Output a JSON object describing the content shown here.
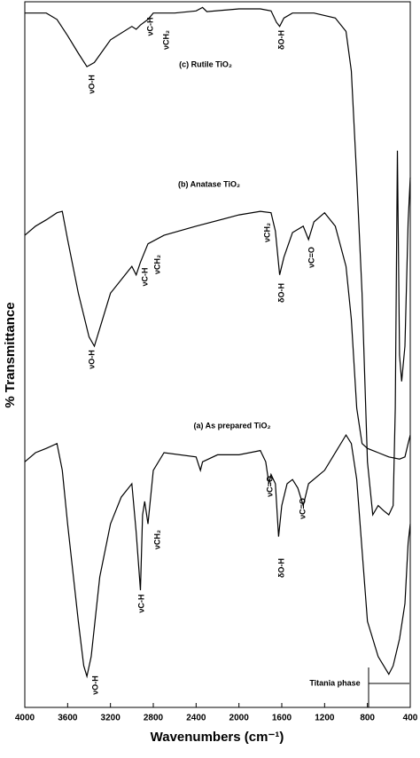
{
  "chart_data": {
    "type": "line",
    "x_label": "Wavenumbers (cm⁻¹)",
    "y_label": "% Transmittance",
    "xlim": [
      4000,
      400
    ],
    "xticks": [
      4000,
      3600,
      3200,
      2800,
      2400,
      2000,
      1600,
      1200,
      800,
      400
    ],
    "ylim": [
      0,
      100
    ],
    "grid": false,
    "series": [
      {
        "name": "(c) Rutile TiO₂",
        "color": "#000000",
        "x": [
          4000,
          3800,
          3700,
          3600,
          3500,
          3420,
          3350,
          3200,
          3000,
          2960,
          2920,
          2850,
          2800,
          2600,
          2400,
          2340,
          2300,
          2000,
          1800,
          1700,
          1650,
          1620,
          1580,
          1500,
          1300,
          1100,
          1000,
          950,
          900,
          850,
          800,
          750,
          700,
          650,
          600,
          560,
          540,
          520,
          500,
          480,
          450,
          420,
          400
        ],
        "values": [
          98.4,
          98.4,
          97.5,
          95.2,
          92.7,
          90.8,
          91.4,
          94.6,
          96.5,
          96.1,
          96.7,
          97.5,
          98.4,
          98.4,
          98.7,
          99.2,
          98.6,
          99.0,
          99.0,
          98.7,
          97.1,
          96.5,
          97.7,
          98.4,
          98.4,
          97.7,
          95.8,
          90.2,
          75.1,
          58.7,
          34.8,
          27.3,
          28.6,
          27.9,
          27.3,
          28.6,
          42.4,
          78.9,
          49.9,
          46.2,
          51.2,
          68.8,
          75.1
        ]
      },
      {
        "name": "(b) Anatase TiO₂",
        "color": "#000000",
        "x": [
          4000,
          3900,
          3800,
          3700,
          3650,
          3600,
          3500,
          3400,
          3350,
          3300,
          3200,
          3000,
          2960,
          2920,
          2850,
          2700,
          2400,
          2000,
          1800,
          1700,
          1660,
          1620,
          1580,
          1500,
          1400,
          1350,
          1300,
          1200,
          1100,
          1000,
          950,
          900,
          850,
          800,
          700,
          600,
          500,
          450,
          420,
          400
        ],
        "values": [
          66.9,
          68.2,
          69.1,
          70.1,
          70.3,
          66.3,
          58.7,
          52.5,
          51.2,
          53.7,
          58.7,
          62.5,
          61.3,
          63.1,
          65.7,
          66.9,
          68.2,
          69.8,
          70.3,
          70.1,
          67.5,
          61.3,
          63.8,
          67.3,
          68.2,
          66.3,
          68.8,
          70.1,
          68.2,
          62.5,
          55.0,
          42.4,
          37.4,
          36.7,
          36.1,
          35.5,
          35.2,
          35.5,
          37.4,
          38.6
        ]
      },
      {
        "name": "(a) As prepared TiO₂",
        "color": "#000000",
        "x": [
          4000,
          3900,
          3800,
          3700,
          3650,
          3600,
          3500,
          3450,
          3420,
          3380,
          3300,
          3200,
          3100,
          3000,
          2960,
          2920,
          2900,
          2880,
          2850,
          2800,
          2700,
          2400,
          2360,
          2340,
          2200,
          2000,
          1800,
          1750,
          1720,
          1700,
          1660,
          1630,
          1600,
          1550,
          1500,
          1450,
          1400,
          1350,
          1200,
          1000,
          950,
          900,
          850,
          800,
          700,
          600,
          560,
          500,
          450,
          420,
          400
        ],
        "values": [
          34.8,
          36.1,
          36.7,
          37.4,
          33.6,
          26.0,
          12.2,
          5.9,
          4.4,
          7.2,
          18.5,
          26.0,
          29.8,
          31.7,
          24.8,
          16.6,
          27.3,
          29.2,
          26.0,
          33.6,
          36.1,
          35.5,
          33.6,
          34.8,
          35.8,
          35.8,
          36.4,
          34.8,
          31.7,
          33.0,
          31.7,
          24.2,
          28.6,
          31.7,
          32.3,
          31.1,
          28.6,
          31.7,
          33.6,
          38.6,
          37.4,
          32.3,
          22.3,
          12.2,
          7.2,
          4.7,
          5.9,
          9.7,
          14.7,
          23.3,
          26.0
        ]
      }
    ],
    "annotations": [
      "νO-H",
      "νC-H",
      "νCH₂",
      "δO-H",
      "νCH₂",
      "νC-H",
      "νCH₂",
      "δO-H",
      "νC=O",
      "νO-H",
      "νC=O",
      "νCH₂",
      "δO-H",
      "νC=O",
      "νC-H",
      "νO-H",
      "Titania phase"
    ]
  }
}
